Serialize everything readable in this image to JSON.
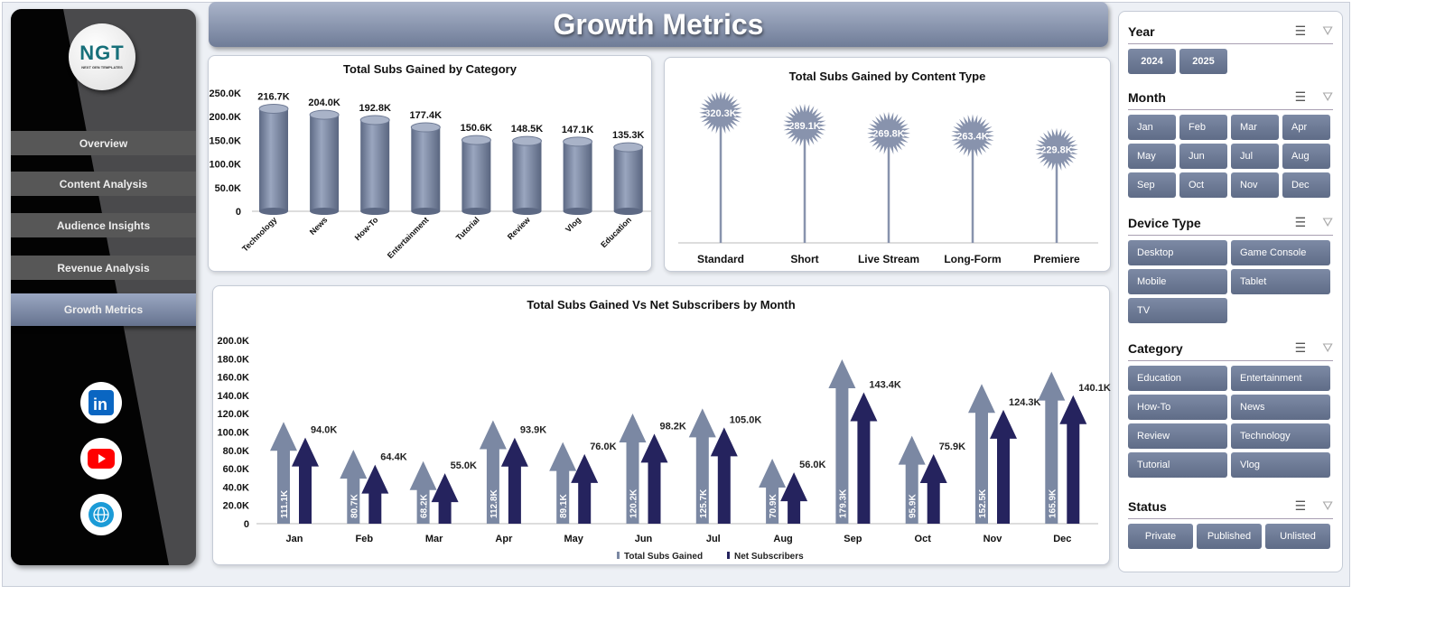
{
  "title": "Growth Metrics",
  "logo": {
    "text": "NGT",
    "subtext": "NEXT GEN TEMPLATES"
  },
  "nav": [
    {
      "label": "Overview"
    },
    {
      "label": "Content Analysis"
    },
    {
      "label": "Audience Insights"
    },
    {
      "label": "Revenue Analysis"
    },
    {
      "label": "Growth Metrics",
      "active": true
    }
  ],
  "social": [
    {
      "icon": "linkedin-icon",
      "color": "#0a66c2"
    },
    {
      "icon": "youtube-icon",
      "color": "#ff0000"
    },
    {
      "icon": "globe-icon",
      "color": "#1b9bd7"
    }
  ],
  "slicers": [
    {
      "title": "Year",
      "items": [
        "2024",
        "2025"
      ]
    },
    {
      "title": "Month",
      "items": [
        "Jan",
        "Feb",
        "Mar",
        "Apr",
        "May",
        "Jun",
        "Jul",
        "Aug",
        "Sep",
        "Oct",
        "Nov",
        "Dec"
      ]
    },
    {
      "title": "Device Type",
      "items": [
        "Desktop",
        "Game Console",
        "Mobile",
        "Tablet",
        "TV"
      ]
    },
    {
      "title": "Category",
      "items": [
        "Education",
        "Entertainment",
        "How-To",
        "News",
        "Review",
        "Technology",
        "Tutorial",
        "Vlog"
      ]
    },
    {
      "title": "Status",
      "items": [
        "Private",
        "Published",
        "Unlisted"
      ]
    }
  ],
  "chart_data": [
    {
      "type": "bar",
      "title": "Total Subs Gained by Category",
      "categories": [
        "Technology",
        "News",
        "How-To",
        "Entertainment",
        "Tutorial",
        "Review",
        "Vlog",
        "Education"
      ],
      "values": [
        216.7,
        204.0,
        192.8,
        177.4,
        150.6,
        148.5,
        147.1,
        135.3
      ],
      "labels": [
        "216.7K",
        "204.0K",
        "192.8K",
        "177.4K",
        "150.6K",
        "148.5K",
        "147.1K",
        "135.3K"
      ],
      "yticks": [
        "0",
        "50.0K",
        "100.0K",
        "150.0K",
        "200.0K",
        "250.0K"
      ],
      "ylim": [
        0,
        250
      ],
      "unit": "K",
      "color": "#7d8aa5"
    },
    {
      "type": "scatter",
      "title": "Total Subs Gained by Content Type",
      "categories": [
        "Standard",
        "Short",
        "Live Stream",
        "Long-Form",
        "Premiere"
      ],
      "values": [
        320.3,
        289.1,
        269.8,
        263.4,
        229.8
      ],
      "labels": [
        "320.3K",
        "289.1K",
        "269.8K",
        "263.4K",
        "229.8K"
      ],
      "unit": "K",
      "color": "#8893ad"
    },
    {
      "type": "bar",
      "title": "Total Subs Gained Vs  Net Subscribers by Month",
      "categories": [
        "Jan",
        "Feb",
        "Mar",
        "Apr",
        "May",
        "Jun",
        "Jul",
        "Aug",
        "Sep",
        "Oct",
        "Nov",
        "Dec"
      ],
      "yticks": [
        "0",
        "20.0K",
        "40.0K",
        "60.0K",
        "80.0K",
        "100.0K",
        "120.0K",
        "140.0K",
        "160.0K",
        "180.0K",
        "200.0K"
      ],
      "ylim": [
        0,
        200
      ],
      "unit": "K",
      "series": [
        {
          "name": "Total Subs Gained",
          "color": "#7b88a3",
          "values": [
            111.1,
            80.7,
            68.2,
            112.8,
            89.1,
            120.2,
            125.7,
            70.9,
            179.3,
            95.9,
            152.5,
            165.9
          ],
          "labels": [
            "111.1K",
            "80.7K",
            "68.2K",
            "112.8K",
            "89.1K",
            "120.2K",
            "125.7K",
            "70.9K",
            "179.3K",
            "95.9K",
            "152.5K",
            "165.9K"
          ]
        },
        {
          "name": "Net Subscribers",
          "color": "#25235e",
          "values": [
            94.0,
            64.4,
            55.0,
            93.9,
            76.0,
            98.2,
            105.0,
            56.0,
            143.4,
            75.9,
            124.3,
            140.1
          ],
          "labels": [
            "94.0K",
            "64.4K",
            "55.0K",
            "93.9K",
            "76.0K",
            "98.2K",
            "105.0K",
            "56.0K",
            "143.4K",
            "75.9K",
            "124.3K",
            "140.1K"
          ]
        }
      ],
      "legend": "bottom"
    }
  ]
}
